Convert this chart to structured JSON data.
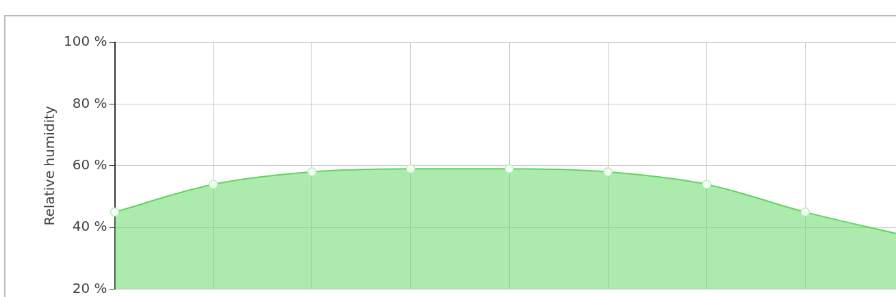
{
  "chart_data": {
    "type": "area",
    "ylabel": "Relative humidity",
    "categories": [
      null,
      null,
      null,
      null,
      null,
      null,
      null,
      null,
      null
    ],
    "series": [
      {
        "color": "#5cd65c",
        "values": [
          45,
          54,
          58,
          59,
          59,
          58,
          54,
          45,
          37.5
        ]
      }
    ],
    "ylim": [
      20,
      100
    ],
    "yticks": [
      {
        "value": 20,
        "label": "20 %"
      },
      {
        "value": 40,
        "label": "40 %"
      },
      {
        "value": 60,
        "label": "60 %"
      },
      {
        "value": 80,
        "label": "80 %"
      },
      {
        "value": 100,
        "label": "100 %"
      }
    ],
    "grid": true,
    "legend": false,
    "marker": "circle"
  }
}
